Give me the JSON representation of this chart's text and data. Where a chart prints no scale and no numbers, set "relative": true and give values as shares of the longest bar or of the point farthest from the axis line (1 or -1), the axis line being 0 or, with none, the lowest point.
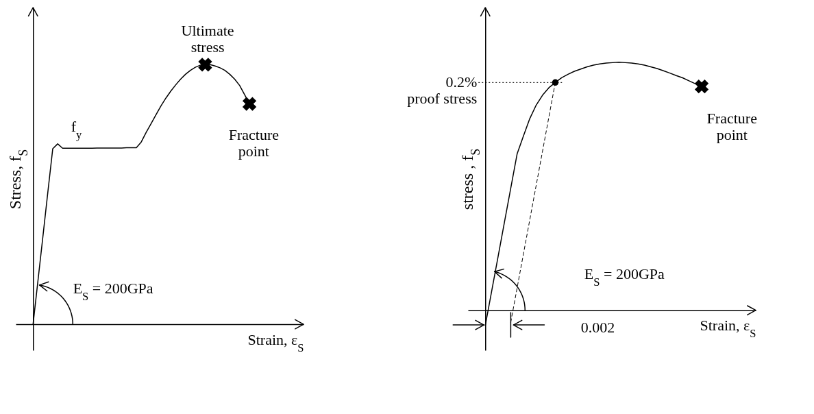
{
  "chart_data": [
    {
      "type": "line",
      "relative": true,
      "xlabel": "Strain, ε$_{S}$",
      "ylabel": "Stress,  f$_{S}$",
      "categories": [
        null,
        null,
        null,
        null,
        null,
        null,
        null,
        null,
        null,
        null,
        null,
        null,
        null,
        null,
        null,
        null,
        null,
        null,
        null,
        null,
        null,
        null,
        null,
        null,
        null,
        null,
        null,
        null,
        null,
        null,
        null,
        null,
        null,
        null,
        null,
        null,
        null,
        null,
        null,
        null,
        null,
        null,
        null,
        null,
        null
      ],
      "series": [
        {
          "color": "#000000",
          "values": [
            0,
            0.169,
            0.338,
            0.508,
            0.676,
            0.695,
            0.678,
            0.678,
            0.678,
            0.678,
            0.678,
            0.678,
            0.678,
            0.679,
            0.679,
            0.679,
            0.679,
            0.679,
            0.679,
            0.68,
            0.68,
            0.68,
            0.702,
            0.739,
            0.773,
            0.807,
            0.841,
            0.871,
            0.898,
            0.922,
            0.944,
            0.963,
            0.978,
            0.99,
            0.998,
            1,
            1,
            0.995,
            0.988,
            0.978,
            0.963,
            0.944,
            0.92,
            0.885,
            0.849
          ]
        }
      ],
      "annotations": [
        "Ultimate\nstress",
        "Fracture\npoint",
        "f$_{y}$",
        "E$_{S}$ = 200GPa"
      ]
    },
    {
      "type": "line",
      "relative": true,
      "xlabel": "Strain, ε$_{S}$",
      "ylabel": "stress ,  f$_{S}$",
      "categories": [
        null,
        null,
        null,
        null,
        null,
        null,
        null,
        null,
        null,
        null,
        null,
        null,
        null,
        null,
        null,
        null,
        null,
        null,
        null,
        null,
        null,
        null,
        null,
        null,
        null,
        null,
        null,
        null,
        null,
        null,
        null,
        null,
        null,
        null,
        null
      ],
      "series": [
        {
          "color": "#000000",
          "values": [
            -0.061,
            0.077,
            0.215,
            0.354,
            0.492,
            0.63,
            0.703,
            0.773,
            0.827,
            0.867,
            0.897,
            0.918,
            0.937,
            0.951,
            0.963,
            0.972,
            0.981,
            0.988,
            0.993,
            0.996,
            0.998,
            1,
            0.998,
            0.996,
            0.993,
            0.988,
            0.981,
            0.974,
            0.965,
            0.956,
            0.946,
            0.937,
            0.925,
            0.913,
            0.902
          ]
        },
        {
          "color": "#000000",
          "line_style": "dashed",
          "values": [
            null,
            null,
            null,
            null,
            -0.048,
            0.09,
            0.228,
            0.366,
            0.504,
            0.642,
            0.78,
            0.918,
            null,
            null,
            null,
            null,
            null,
            null,
            null,
            null,
            null,
            null,
            null,
            null,
            null,
            null,
            null,
            null,
            null,
            null,
            null,
            null,
            null,
            null,
            null
          ]
        }
      ],
      "ref_lines": [
        {
          "axis": "y",
          "value": 0.918,
          "label": "0.2%\nproof stress",
          "line_style": "dotted",
          "color": "#000000"
        }
      ],
      "annotations": [
        "Fracture\npoint",
        "E$_{S}$ = 200GPa",
        "0.002"
      ]
    }
  ]
}
